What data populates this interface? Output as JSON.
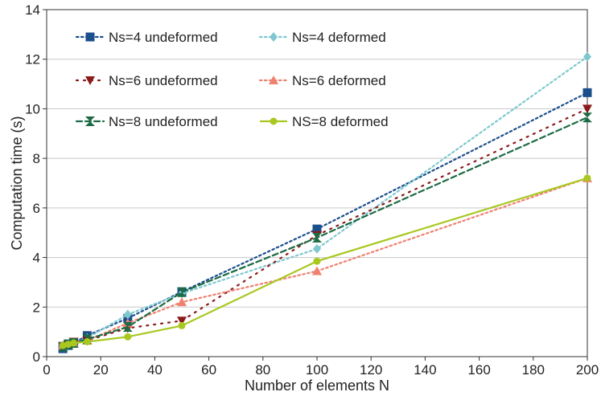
{
  "chart_data": {
    "type": "line",
    "title": "",
    "xlabel": "Number of elements N",
    "ylabel": "Computation time (s)",
    "xlim": [
      0,
      200
    ],
    "ylim": [
      0,
      14
    ],
    "xticks": [
      0,
      20,
      40,
      60,
      80,
      100,
      120,
      140,
      160,
      180,
      200
    ],
    "yticks": [
      0,
      2,
      4,
      6,
      8,
      10,
      12,
      14
    ],
    "grid": "horizontal",
    "legend_position": "top-left",
    "series": [
      {
        "name": "Ns=4 undeformed",
        "color": "#1b4f8c",
        "dash": "dot",
        "marker": "square",
        "x": [
          6,
          8,
          10,
          15,
          30,
          50,
          100,
          200
        ],
        "y": [
          0.32,
          0.45,
          0.55,
          0.85,
          1.55,
          2.62,
          5.15,
          10.65
        ]
      },
      {
        "name": "Ns=4 deformed",
        "color": "#7ec8d0",
        "dash": "dot",
        "marker": "diamond",
        "x": [
          6,
          8,
          10,
          15,
          30,
          50,
          100,
          200
        ],
        "y": [
          0.4,
          0.5,
          0.55,
          0.75,
          1.7,
          2.55,
          4.35,
          12.1
        ]
      },
      {
        "name": "Ns=6 undeformed",
        "color": "#8b1a1a",
        "dash": "dot-sparse",
        "marker": "triangle-down",
        "x": [
          6,
          8,
          10,
          15,
          30,
          50,
          100,
          200
        ],
        "y": [
          0.4,
          0.5,
          0.6,
          0.65,
          1.15,
          1.45,
          4.9,
          10.0
        ]
      },
      {
        "name": "Ns=6 deformed",
        "color": "#f08070",
        "dash": "dot",
        "marker": "triangle-up",
        "x": [
          6,
          8,
          10,
          15,
          30,
          50,
          100,
          200
        ],
        "y": [
          0.45,
          0.5,
          0.55,
          0.65,
          1.35,
          2.2,
          3.45,
          7.2
        ]
      },
      {
        "name": "Ns=8 undeformed",
        "color": "#1d6b44",
        "dash": "dash",
        "marker": "hourglass",
        "x": [
          6,
          8,
          10,
          15,
          30,
          50,
          100,
          200
        ],
        "y": [
          0.4,
          0.5,
          0.55,
          0.7,
          1.2,
          2.6,
          4.8,
          9.65
        ]
      },
      {
        "name": "NS=8 deformed",
        "color": "#a8c820",
        "dash": "solid",
        "marker": "circle",
        "x": [
          6,
          8,
          10,
          15,
          30,
          50,
          100,
          200
        ],
        "y": [
          0.45,
          0.5,
          0.55,
          0.6,
          0.8,
          1.25,
          3.85,
          7.2
        ]
      }
    ]
  }
}
